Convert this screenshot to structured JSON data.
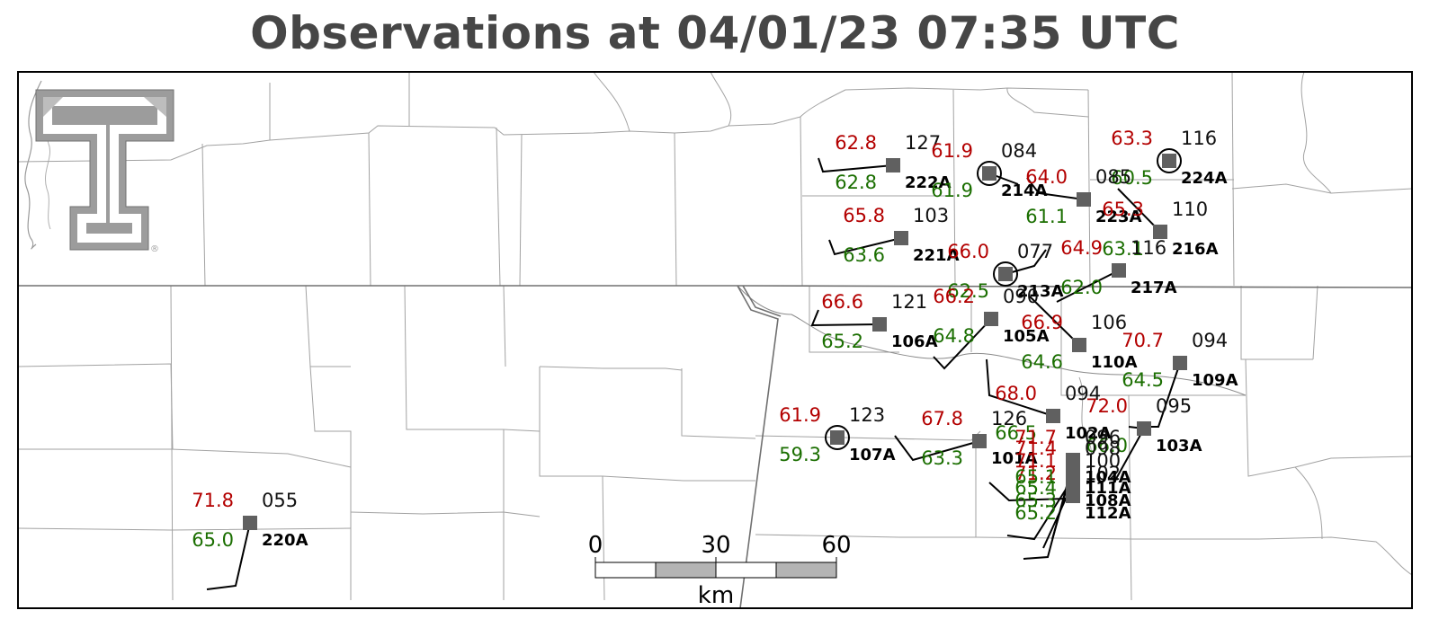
{
  "title": "Observations at 04/01/23 07:35 UTC",
  "colors": {
    "temperature": "#b30000",
    "dewpoint": "#1a6e00",
    "pressure": "#111111",
    "station_marker": "#606060",
    "county_lines": "#9a9a9a",
    "state_lines": "#6e6e6e",
    "logo": "#9c9c9c"
  },
  "logo": {
    "name": "texas-tech-double-t-logo",
    "text": "T",
    "registered_mark": "®"
  },
  "legend_semantics": {
    "upper_left_value": "temperature",
    "lower_left_value": "dewpoint",
    "upper_right_value": "pressure",
    "lower_right_value": "station_id"
  },
  "scale_bar": {
    "ticks": [
      "0",
      "30",
      "60"
    ],
    "unit": "km"
  },
  "stations": [
    {
      "id": "222A",
      "temp": "62.8",
      "dew": "62.8",
      "pres": "127",
      "circled": false
    },
    {
      "id": "214A",
      "temp": "61.9",
      "dew": "61.9",
      "pres": "084",
      "circled": true
    },
    {
      "id": "224A",
      "temp": "63.3",
      "dew": "60.5",
      "pres": "116",
      "circled": true
    },
    {
      "id": "223A",
      "temp": "64.0",
      "dew": "61.1",
      "pres": "085",
      "circled": false
    },
    {
      "id": "216A",
      "temp": "65.3",
      "dew": "63.1",
      "pres": "110",
      "circled": false
    },
    {
      "id": "221A",
      "temp": "65.8",
      "dew": "63.6",
      "pres": "103",
      "circled": false
    },
    {
      "id": "213A",
      "temp": "66.0",
      "dew": "62.5",
      "pres": "077",
      "circled": true
    },
    {
      "id": "217A",
      "temp": "64.9",
      "dew": "62.0",
      "pres": "116",
      "circled": false
    },
    {
      "id": "106A",
      "temp": "66.6",
      "dew": "65.2",
      "pres": "121",
      "circled": false
    },
    {
      "id": "105A",
      "temp": "66.2",
      "dew": "64.8",
      "pres": "090",
      "circled": false
    },
    {
      "id": "110A",
      "temp": "66.9",
      "dew": "64.6",
      "pres": "106",
      "circled": false
    },
    {
      "id": "109A",
      "temp": "70.7",
      "dew": "64.5",
      "pres": "094",
      "circled": false
    },
    {
      "id": "102A",
      "temp": "68.0",
      "dew": "66.5",
      "pres": "094",
      "circled": false
    },
    {
      "id": "103A",
      "temp": "72.0",
      "dew": "66.0",
      "pres": "095",
      "circled": false
    },
    {
      "id": "107A",
      "temp": "61.9",
      "dew": "59.3",
      "pres": "123",
      "circled": true
    },
    {
      "id": "101A",
      "temp": "67.8",
      "dew": "63.3",
      "pres": "126",
      "circled": false
    },
    {
      "id": "220A",
      "temp": "71.8",
      "dew": "65.0",
      "pres": "055",
      "circled": false
    },
    {
      "id": "112A",
      "temp": "71.2",
      "dew": "65.2",
      "pres": "102",
      "circled": false
    },
    {
      "id": "108A",
      "temp": "71.1",
      "dew": "65.3",
      "pres": "100",
      "circled": false
    },
    {
      "id": "111A",
      "temp": "71.4",
      "dew": "65.4",
      "pres": "098",
      "circled": false
    },
    {
      "id": "104A",
      "temp": "71.7",
      "dew": "65.1",
      "pres": "096",
      "circled": false
    }
  ]
}
